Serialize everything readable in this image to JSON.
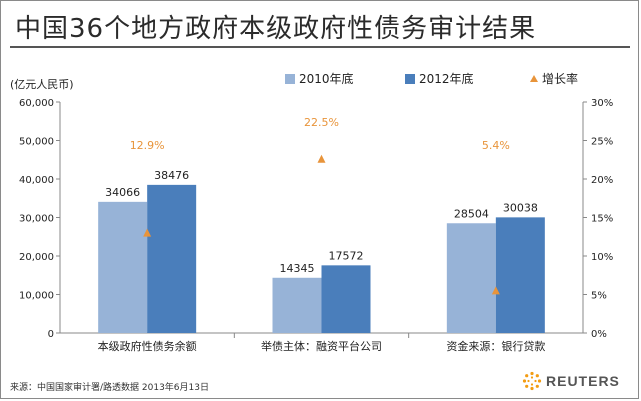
{
  "chart_data": {
    "type": "bar",
    "title": "中国36个地方政府本级政府性债务审计结果",
    "ylabel": "(亿元人民币)",
    "categories": [
      "本级政府性债务余额",
      "举债主体：融资平台公司",
      "资金来源：银行贷款"
    ],
    "series": [
      {
        "name": "2010年底",
        "values": [
          34066,
          14345,
          28504
        ],
        "color": "#97b3d7"
      },
      {
        "name": "2012年底",
        "values": [
          38476,
          17572,
          30038
        ],
        "color": "#4a7ebb"
      }
    ],
    "growth": {
      "name": "增长率",
      "values": [
        12.9,
        22.5,
        5.4
      ],
      "labels": [
        "12.9%",
        "22.5%",
        "5.4%"
      ],
      "color": "#e8943a"
    },
    "ylim": [
      0,
      60000
    ],
    "yticks": [
      "0",
      "10,000",
      "20,000",
      "30,000",
      "40,000",
      "50,000",
      "60,000"
    ],
    "y2lim": [
      0,
      30
    ],
    "y2ticks": [
      "0%",
      "5%",
      "10%",
      "15%",
      "20%",
      "25%",
      "30%"
    ],
    "legend_position": "top",
    "grid": false
  },
  "source": "来源：中国国家审计署/路透数据 2013年6月13日",
  "brand": "REUTERS"
}
